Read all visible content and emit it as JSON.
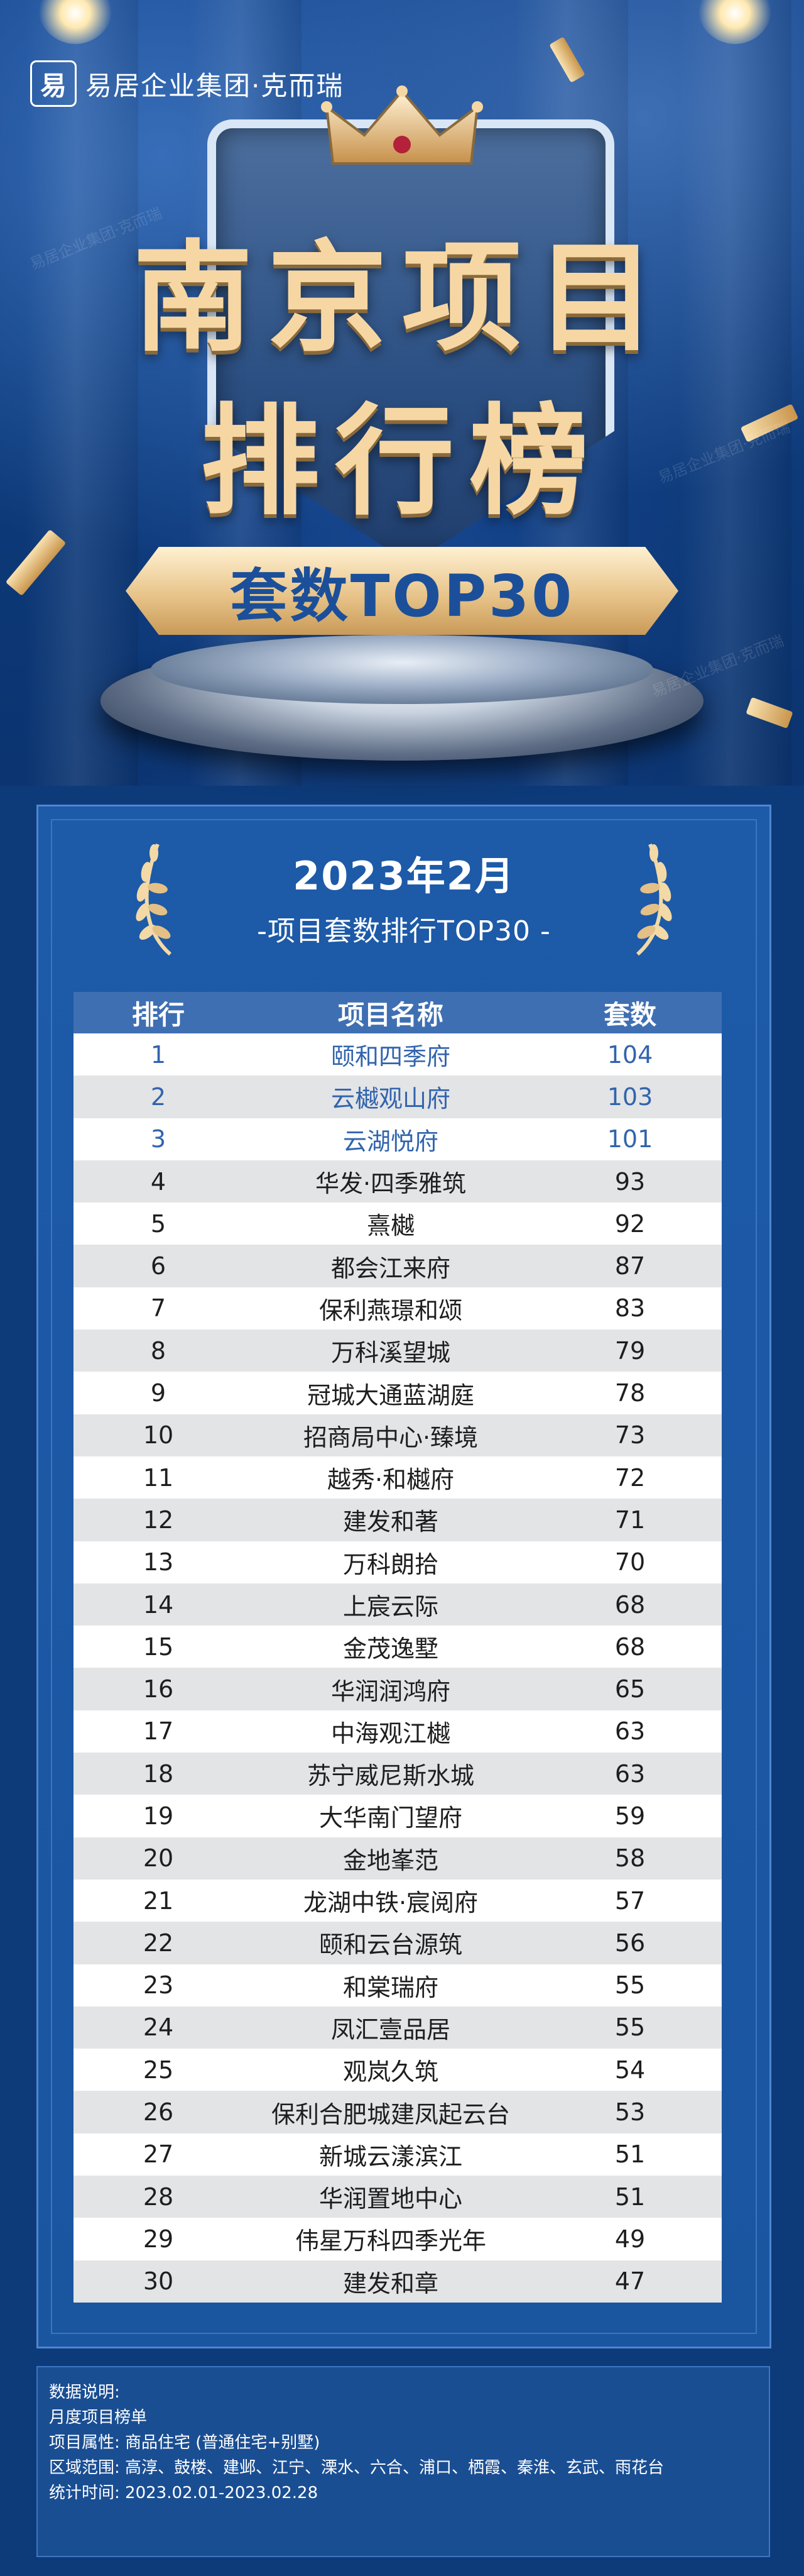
{
  "brand": {
    "logo_mark": "易",
    "name": "易居企业集团·克而瑞"
  },
  "hero": {
    "title_line1": "南京项目",
    "title_line2": "排行榜",
    "ribbon": "套数TOP30"
  },
  "panel": {
    "date": "2023年2月",
    "subtitle": "-项目套数排行TOP30 -"
  },
  "table": {
    "headers": [
      "排行",
      "项目名称",
      "套数"
    ],
    "rows": [
      [
        "1",
        "颐和四季府",
        "104"
      ],
      [
        "2",
        "云樾观山府",
        "103"
      ],
      [
        "3",
        "云湖悦府",
        "101"
      ],
      [
        "4",
        "华发·四季雅筑",
        "93"
      ],
      [
        "5",
        "熹樾",
        "92"
      ],
      [
        "6",
        "都会江来府",
        "87"
      ],
      [
        "7",
        "保利燕璟和颂",
        "83"
      ],
      [
        "8",
        "万科溪望城",
        "79"
      ],
      [
        "9",
        "冠城大通蓝湖庭",
        "78"
      ],
      [
        "10",
        "招商局中心·臻境",
        "73"
      ],
      [
        "11",
        "越秀·和樾府",
        "72"
      ],
      [
        "12",
        "建发和著",
        "71"
      ],
      [
        "13",
        "万科朗拾",
        "70"
      ],
      [
        "14",
        "上宸云际",
        "68"
      ],
      [
        "15",
        "金茂逸墅",
        "68"
      ],
      [
        "16",
        "华润润鸿府",
        "65"
      ],
      [
        "17",
        "中海观江樾",
        "63"
      ],
      [
        "18",
        "苏宁威尼斯水城",
        "63"
      ],
      [
        "19",
        "大华南门望府",
        "59"
      ],
      [
        "20",
        "金地峯范",
        "58"
      ],
      [
        "21",
        "龙湖中铁·宸阅府",
        "57"
      ],
      [
        "22",
        "颐和云台源筑",
        "56"
      ],
      [
        "23",
        "和棠瑞府",
        "55"
      ],
      [
        "24",
        "凤汇壹品居",
        "55"
      ],
      [
        "25",
        "观岚久筑",
        "54"
      ],
      [
        "26",
        "保利合肥城建凤起云台",
        "53"
      ],
      [
        "27",
        "新城云漾滨江",
        "51"
      ],
      [
        "28",
        "华润置地中心",
        "51"
      ],
      [
        "29",
        "伟星万科四季光年",
        "49"
      ],
      [
        "30",
        "建发和章",
        "47"
      ]
    ]
  },
  "notes": {
    "heading": "数据说明:",
    "line1": "月度项目榜单",
    "line2": "项目属性: 商品住宅 (普通住宅+别墅)",
    "line3": "区域范围: 高淳、鼓楼、建邺、江宁、溧水、六合、浦口、栖霞、秦淮、玄武、雨花台",
    "line4": "统计时间: 2023.02.01-2023.02.28"
  },
  "watermark": "易居企业集团·克而瑞",
  "colors": {
    "background": "#0d3b7a",
    "header": "#3f6fb3",
    "top3_text": "#3164ad",
    "gold": "#f6d7a4"
  }
}
